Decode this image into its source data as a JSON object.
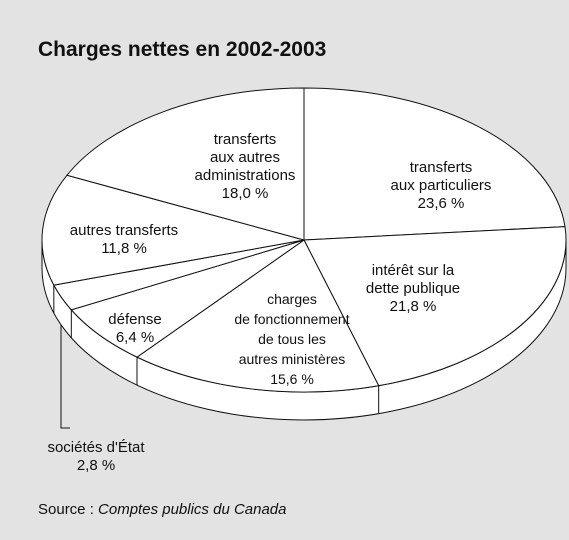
{
  "chart_data": {
    "type": "pie",
    "title": "Charges nettes en 2002-2003",
    "categories": [
      "transferts\naux particuliers",
      "intérêt sur la\ndette publique",
      "charges\nde fonctionnement\nde tous les\nautres ministères",
      "défense",
      "sociétés d'État",
      "autres transferts",
      "transferts\naux autres\nadministrations"
    ],
    "values": [
      23.6,
      21.8,
      15.6,
      6.4,
      2.8,
      11.8,
      18.0
    ],
    "value_labels": [
      "23,6 %",
      "21,8 %",
      "15,6 %",
      "6,4 %",
      "2,8 %",
      "11,8 %",
      "18,0 %"
    ],
    "color": "#ffffff",
    "source_label": "Source :",
    "source_text": "Comptes publics du Canada"
  }
}
